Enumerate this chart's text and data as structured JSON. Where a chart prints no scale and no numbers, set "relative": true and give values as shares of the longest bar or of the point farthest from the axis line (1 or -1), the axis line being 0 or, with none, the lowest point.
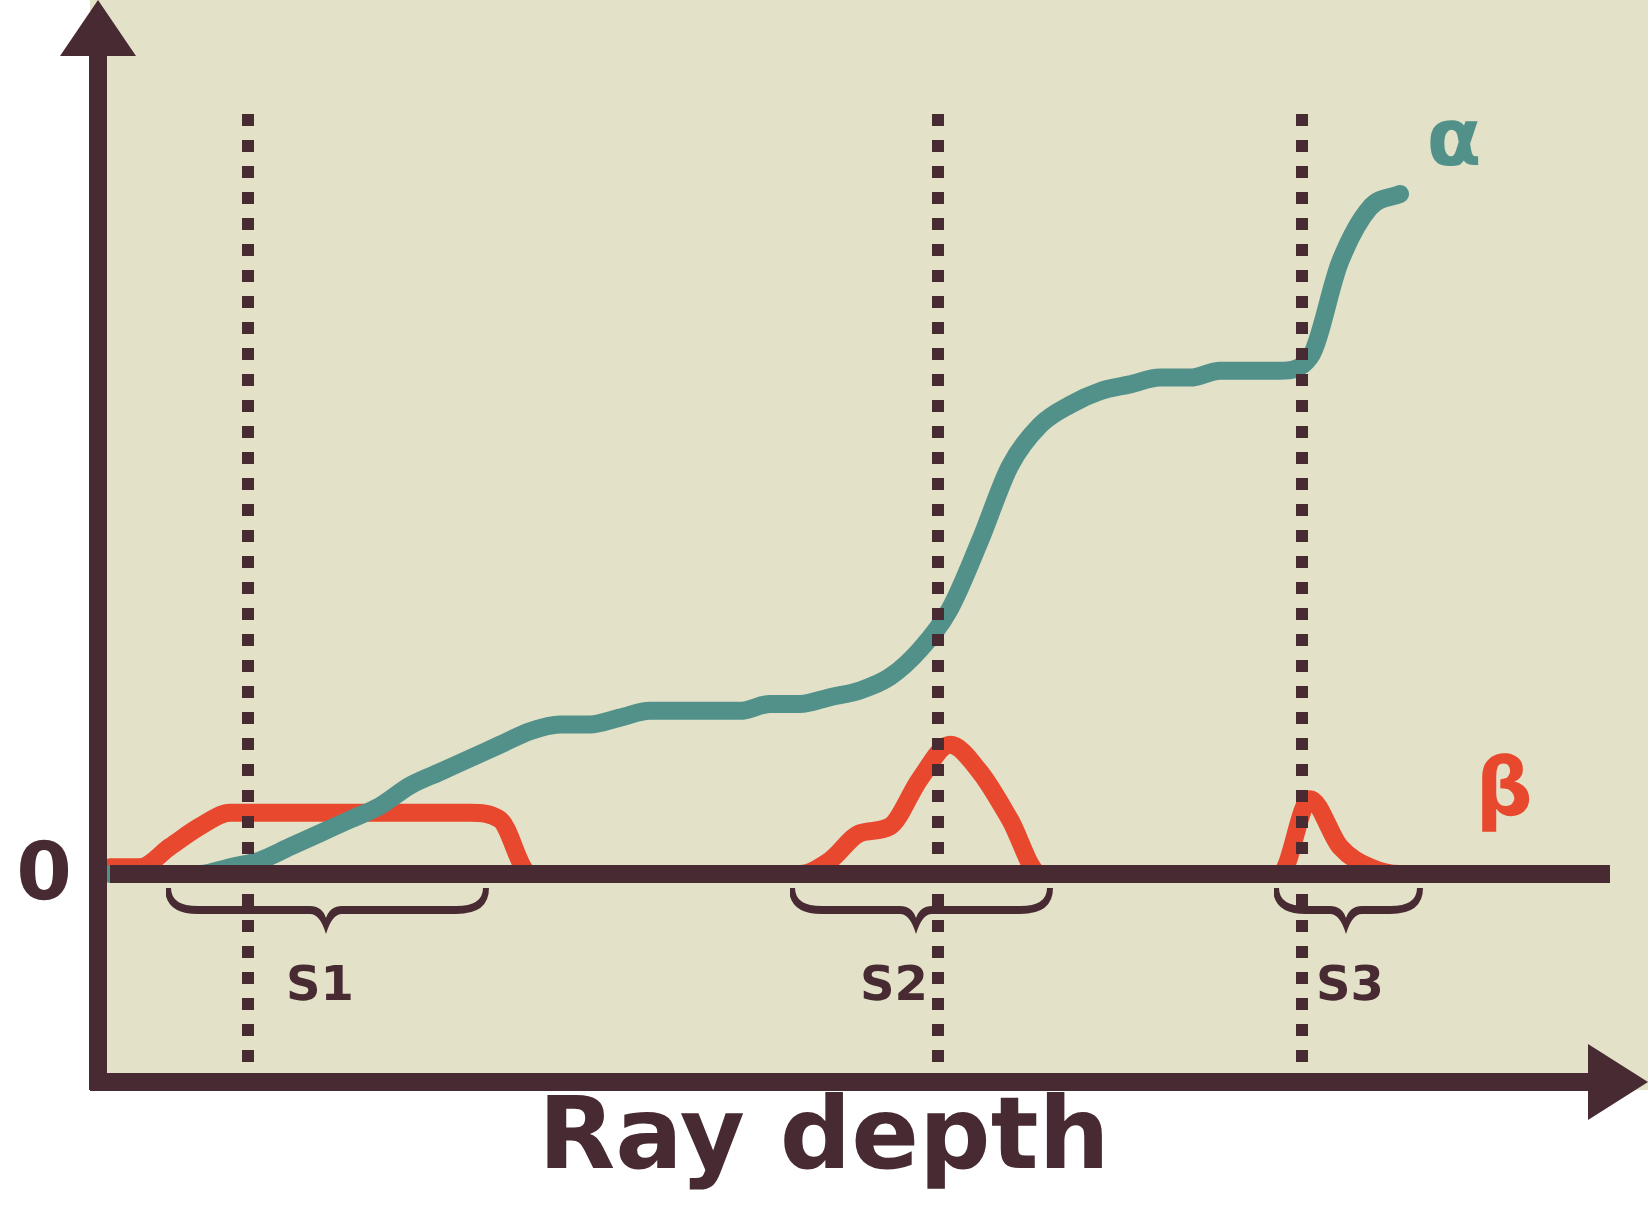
{
  "chart_data": {
    "type": "line",
    "xlabel": "Ray depth",
    "relative": true,
    "legend": false,
    "marker": "none",
    "line_style": "solid",
    "categories": [
      null,
      null,
      null,
      null,
      null,
      null,
      null,
      null,
      null,
      null,
      null,
      null,
      null,
      null,
      null,
      null,
      null,
      null,
      null,
      null,
      null,
      null,
      null,
      null,
      null,
      null,
      null,
      null,
      null,
      null,
      null,
      null,
      null,
      null,
      null,
      null,
      null,
      null,
      null,
      null,
      null,
      null,
      null,
      null,
      null,
      null,
      null,
      null,
      null,
      null,
      null
    ],
    "series": [
      {
        "name": "α",
        "color": "#52918a",
        "values": [
          0,
          0,
          0,
          0,
          0.01,
          0.02,
          0.04,
          0.06,
          0.08,
          0.1,
          0.13,
          0.15,
          0.17,
          0.19,
          0.21,
          0.22,
          0.22,
          0.23,
          0.24,
          0.24,
          0.24,
          0.24,
          0.25,
          0.25,
          0.26,
          0.27,
          0.29,
          0.33,
          0.39,
          0.49,
          0.6,
          0.66,
          0.69,
          0.71,
          0.72,
          0.73,
          0.73,
          0.74,
          0.74,
          0.74,
          0.76,
          0.9,
          0.98,
          1,
          null,
          null,
          null,
          null,
          null,
          null,
          null
        ]
      },
      {
        "name": "β",
        "color": "#e8482e",
        "values": [
          0.01,
          0.01,
          0.04,
          0.07,
          0.09,
          0.09,
          0.09,
          0.09,
          0.09,
          0.09,
          0.09,
          0.09,
          0.09,
          0.08,
          0,
          0,
          0,
          0,
          0,
          0,
          0,
          0,
          0,
          0,
          0.02,
          0.06,
          0.07,
          0.14,
          0.19,
          0.15,
          0.08,
          0,
          0,
          0,
          0,
          0,
          0,
          0,
          0,
          0,
          0.11,
          0.04,
          0.01,
          0,
          0,
          null,
          null,
          null,
          null,
          null,
          null
        ]
      }
    ],
    "annotations": [
      "0",
      "S1",
      "S2",
      "S3"
    ]
  }
}
